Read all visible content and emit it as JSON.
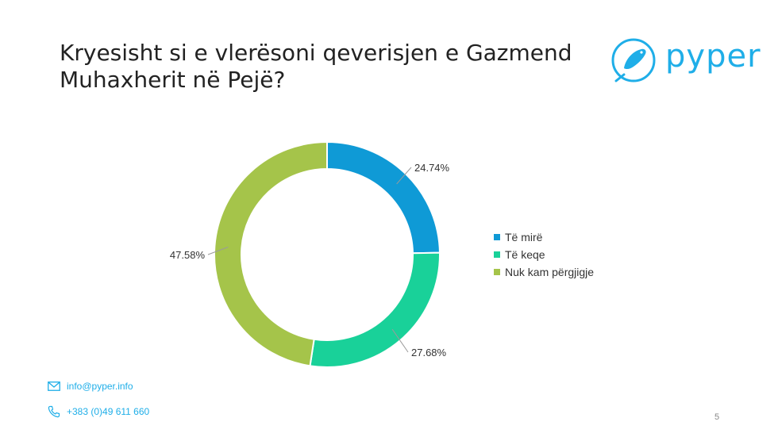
{
  "slide": {
    "title": "Kryesisht si e vlerësoni qeverisjen e Gazmend Muhaxherit në Pejë?",
    "page_number": "5"
  },
  "brand": {
    "name": "pyper",
    "logo_icon": "bird-icon",
    "color": "#1faee8"
  },
  "contact": {
    "email": "info@pyper.info",
    "phone": "+383 (0)49 611 660"
  },
  "chart_data": {
    "type": "pie",
    "donut": true,
    "categories": [
      "Të mirë",
      "Të keqe",
      "Nuk kam përgjigje"
    ],
    "values": [
      24.74,
      27.68,
      47.58
    ],
    "labels": [
      "24.74%",
      "27.68%",
      "47.58%"
    ],
    "colors": [
      "#0f9ad6",
      "#19d199",
      "#a5c44a"
    ],
    "legend_position": "right"
  }
}
